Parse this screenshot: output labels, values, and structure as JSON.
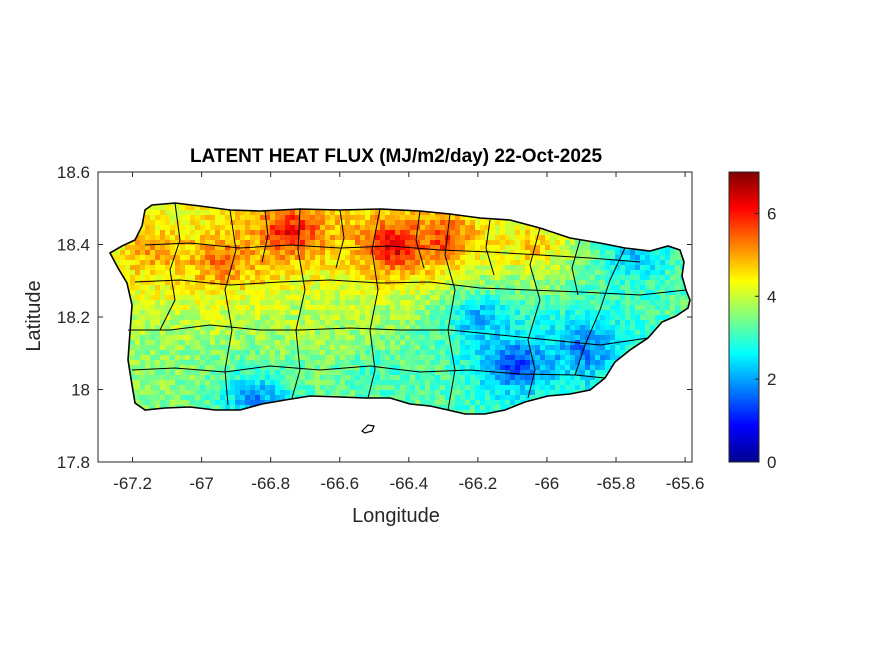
{
  "chart_data": {
    "type": "heatmap",
    "title": "LATENT HEAT FLUX (MJ/m2/day) 22-Oct-2025",
    "xlabel": "Longitude",
    "ylabel": "Latitude",
    "xlim": [
      -67.3,
      -65.58
    ],
    "ylim": [
      17.8,
      18.6
    ],
    "x_ticks": [
      -67.2,
      -67,
      -66.8,
      -66.6,
      -66.4,
      -66.2,
      -66,
      -65.8,
      -65.6
    ],
    "x_tick_labels": [
      "-67.2",
      "-67",
      "-66.8",
      "-66.6",
      "-66.4",
      "-66.2",
      "-66",
      "-65.8",
      "-65.6"
    ],
    "y_ticks": [
      17.8,
      18,
      18.2,
      18.4,
      18.6
    ],
    "y_tick_labels": [
      "17.8",
      "18",
      "18.2",
      "18.4",
      "18.6"
    ],
    "colorbar": {
      "colormap": "jet",
      "range": [
        0,
        7
      ],
      "ticks": [
        0,
        2,
        4,
        6
      ],
      "tick_labels": [
        "0",
        "2",
        "4",
        "6"
      ]
    },
    "grid": false,
    "field_hotspots": [
      {
        "lon": -66.75,
        "lat": 18.44,
        "value": 6.2
      },
      {
        "lon": -66.45,
        "lat": 18.4,
        "value": 6.4
      },
      {
        "lon": -66.3,
        "lat": 18.42,
        "value": 5.8
      },
      {
        "lon": -66.95,
        "lat": 18.36,
        "value": 5.5
      },
      {
        "lon": -67.15,
        "lat": 18.38,
        "value": 5.0
      },
      {
        "lon": -66.05,
        "lat": 18.4,
        "value": 4.8
      },
      {
        "lon": -66.1,
        "lat": 18.08,
        "value": 1.2
      },
      {
        "lon": -65.9,
        "lat": 18.12,
        "value": 1.6
      },
      {
        "lon": -66.2,
        "lat": 18.2,
        "value": 2.0
      },
      {
        "lon": -65.75,
        "lat": 18.38,
        "value": 2.2
      },
      {
        "lon": -66.85,
        "lat": 17.98,
        "value": 1.8
      },
      {
        "lon": -66.5,
        "lat": 18.05,
        "value": 3.0
      },
      {
        "lon": -67.1,
        "lat": 18.1,
        "value": 3.6
      },
      {
        "lon": -66.7,
        "lat": 18.2,
        "value": 3.8
      }
    ],
    "field_base_value": 3.6
  }
}
